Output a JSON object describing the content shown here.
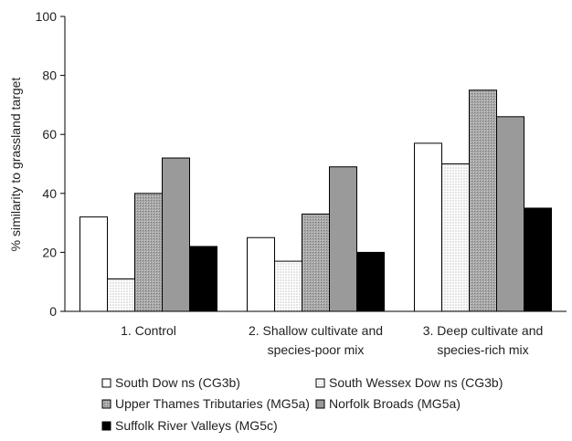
{
  "chart_data": {
    "type": "bar",
    "ylabel": "% similarity to grassland target",
    "ylim": [
      0,
      100
    ],
    "yticks": [
      "0",
      "20",
      "40",
      "60",
      "80",
      "100"
    ],
    "categories": [
      [
        "1. Control"
      ],
      [
        "2. Shallow  cultivate and",
        "species-poor mix"
      ],
      [
        "3. Deep cultivate and",
        "species-rich mix"
      ]
    ],
    "series": [
      {
        "name": "South Dow ns  (CG3b)",
        "values": [
          32,
          25,
          57
        ],
        "fill": "white"
      },
      {
        "name": "South Wessex Dow ns  (CG3b)",
        "values": [
          11,
          17,
          50
        ],
        "fill": "dots"
      },
      {
        "name": "Upper Thames Tributaries  (MG5a)",
        "values": [
          40,
          33,
          75
        ],
        "fill": "hatch"
      },
      {
        "name": "Norfolk Broads  (MG5a)",
        "values": [
          52,
          49,
          66
        ],
        "fill": "gray"
      },
      {
        "name": "Suffolk River Valleys  (MG5c)",
        "values": [
          22,
          20,
          35
        ],
        "fill": "black"
      }
    ],
    "legend_position": "bottom",
    "grid": false
  }
}
